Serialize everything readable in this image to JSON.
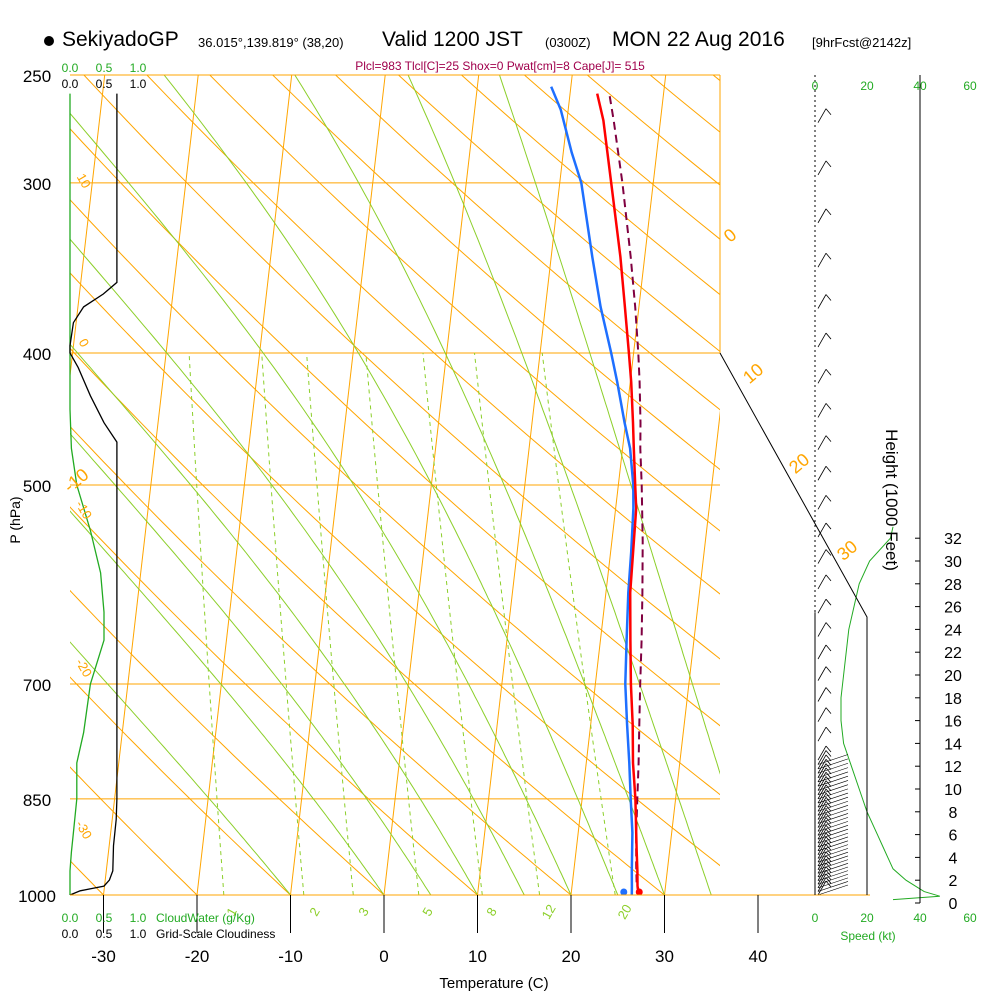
{
  "header": {
    "station": "SekiyadoGP",
    "coords": "36.015°,139.819° (38,20)",
    "valid": "Valid 1200 JST",
    "utc": "(0300Z)",
    "date": "MON 22 Aug 2016",
    "forecast": "[9hrFcst@2142z]",
    "params": "Plcl=983 Tlcl[C]=25 Shox=0 Pwat[cm]=8 Cape[J]= 515"
  },
  "chart_data": {
    "type": "line",
    "title": "",
    "xlabel": "Temperature (C)",
    "ylabel": "P (hPa)",
    "y2label": "Height (1000 Feet)",
    "x_ticks": [
      -30,
      -20,
      -10,
      0,
      10,
      20,
      30,
      40
    ],
    "p_ticks": [
      250,
      300,
      400,
      500,
      700,
      850,
      1000
    ],
    "height_ticks": [
      0,
      2,
      4,
      6,
      8,
      10,
      12,
      14,
      16,
      18,
      20,
      22,
      24,
      26,
      28,
      30,
      32
    ],
    "isotherm_labels": [
      -10,
      0,
      10,
      20,
      30
    ],
    "dryadiabat_labels": [
      10,
      0,
      -10,
      -20,
      -30
    ],
    "mixing_ratio_labels": [
      "1",
      "2",
      "3",
      "5",
      "8",
      "12",
      "20"
    ],
    "cloud_scale_top_green": [
      "0.0",
      "0.5",
      "1.0"
    ],
    "cloud_scale_top_black": [
      "0.0",
      "0.5",
      "1.0"
    ],
    "cloud_scale_bottom_green": [
      "0.0",
      "0.5",
      "1.0"
    ],
    "cloud_scale_bottom_black": [
      "0.0",
      "0.5",
      "1.0"
    ],
    "cloudwater_label": "CloudWater (g/Kg)",
    "cloudiness_label": "Grid-Scale Cloudiness",
    "speed_ticks": [
      "0",
      "20",
      "40",
      "60"
    ],
    "speed_label": "Speed (kt)",
    "colors": {
      "temperature": "#ff0000",
      "dewpoint": "#1e6fff",
      "parcel": "#800040",
      "isobar": "#ffa500",
      "mixing_ratio": "#8ccf2a",
      "green": "#22aa22"
    },
    "series": [
      {
        "role": "temperature",
        "points": [
          [
            1000,
            27.3
          ],
          [
            985,
            27
          ],
          [
            960,
            26.8
          ],
          [
            930,
            26.5
          ],
          [
            900,
            26.2
          ],
          [
            850,
            25.7
          ],
          [
            800,
            25.0
          ],
          [
            750,
            24.5
          ],
          [
            700,
            23.8
          ],
          [
            650,
            23.2
          ],
          [
            600,
            22.6
          ],
          [
            560,
            22.4
          ],
          [
            520,
            22.2
          ],
          [
            500,
            21.8
          ],
          [
            470,
            21.2
          ],
          [
            450,
            20.8
          ],
          [
            420,
            20.1
          ],
          [
            400,
            19.5
          ],
          [
            370,
            18.5
          ],
          [
            340,
            17.4
          ],
          [
            300,
            15.5
          ],
          [
            270,
            13.9
          ],
          [
            258,
            12.9
          ]
        ]
      },
      {
        "role": "dewpoint",
        "points": [
          [
            1000,
            26.5
          ],
          [
            985,
            26.4
          ],
          [
            960,
            26.2
          ],
          [
            930,
            26
          ],
          [
            900,
            25.8
          ],
          [
            850,
            25.2
          ],
          [
            800,
            24.6
          ],
          [
            750,
            23.9
          ],
          [
            700,
            23.2
          ],
          [
            650,
            22.8
          ],
          [
            600,
            22.4
          ],
          [
            560,
            22.2
          ],
          [
            520,
            21.9
          ],
          [
            500,
            21.6
          ],
          [
            470,
            20.8
          ],
          [
            450,
            19.9
          ],
          [
            420,
            18.6
          ],
          [
            400,
            17.6
          ],
          [
            370,
            15.9
          ],
          [
            340,
            14.4
          ],
          [
            300,
            12.3
          ],
          [
            285,
            10.9
          ],
          [
            265,
            9.2
          ],
          [
            255,
            7.9
          ]
        ]
      },
      {
        "role": "parcel",
        "points": [
          [
            1000,
            27.3
          ],
          [
            983,
            26.9
          ],
          [
            950,
            26.6
          ],
          [
            900,
            26.2
          ],
          [
            850,
            25.9
          ],
          [
            800,
            25.6
          ],
          [
            750,
            25.2
          ],
          [
            700,
            24.8
          ],
          [
            650,
            24.4
          ],
          [
            600,
            23.9
          ],
          [
            550,
            23.3
          ],
          [
            500,
            22.5
          ],
          [
            470,
            21.9
          ],
          [
            450,
            21.6
          ],
          [
            420,
            21.0
          ],
          [
            400,
            20.5
          ],
          [
            370,
            19.6
          ],
          [
            340,
            18.5
          ],
          [
            300,
            16.7
          ],
          [
            270,
            15.0
          ],
          [
            258,
            14.2
          ]
        ]
      }
    ],
    "cloud_water": [
      [
        1000,
        0
      ],
      [
        985,
        0
      ],
      [
        960,
        0
      ],
      [
        930,
        0.02
      ],
      [
        900,
        0.05
      ],
      [
        850,
        0.1
      ],
      [
        800,
        0.1
      ],
      [
        760,
        0.2
      ],
      [
        700,
        0.3
      ],
      [
        650,
        0.5
      ],
      [
        620,
        0.5
      ],
      [
        580,
        0.45
      ],
      [
        540,
        0.3
      ],
      [
        500,
        0.1
      ],
      [
        470,
        0.02
      ],
      [
        440,
        0
      ],
      [
        400,
        0
      ],
      [
        300,
        0
      ],
      [
        258,
        0
      ]
    ],
    "cloudiness": [
      [
        1000,
        0
      ],
      [
        993,
        0.15
      ],
      [
        985,
        0.5
      ],
      [
        975,
        0.58
      ],
      [
        960,
        0.63
      ],
      [
        920,
        0.64
      ],
      [
        880,
        0.68
      ],
      [
        850,
        0.69
      ],
      [
        800,
        0.69
      ],
      [
        750,
        0.69
      ],
      [
        700,
        0.69
      ],
      [
        600,
        0.69
      ],
      [
        500,
        0.69
      ],
      [
        465,
        0.69
      ],
      [
        450,
        0.5
      ],
      [
        430,
        0.3
      ],
      [
        410,
        0.12
      ],
      [
        400,
        0
      ],
      [
        395,
        0
      ],
      [
        380,
        0.05
      ],
      [
        370,
        0.2
      ],
      [
        362,
        0.49
      ],
      [
        355,
        0.69
      ],
      [
        300,
        0.69
      ],
      [
        258,
        0.69
      ]
    ],
    "wind_speed": [
      [
        0.3,
        30
      ],
      [
        0.6,
        48
      ],
      [
        1,
        42
      ],
      [
        2,
        35
      ],
      [
        3,
        30
      ],
      [
        4,
        28
      ],
      [
        5,
        26
      ],
      [
        6,
        24
      ],
      [
        8,
        20
      ],
      [
        10,
        17
      ],
      [
        12,
        14
      ],
      [
        14,
        11
      ],
      [
        16,
        10
      ],
      [
        18,
        10
      ],
      [
        20,
        11
      ],
      [
        22,
        12
      ],
      [
        24,
        13
      ],
      [
        26,
        15
      ],
      [
        28,
        17
      ],
      [
        30,
        21
      ],
      [
        32,
        29
      ],
      [
        33,
        30
      ]
    ]
  }
}
